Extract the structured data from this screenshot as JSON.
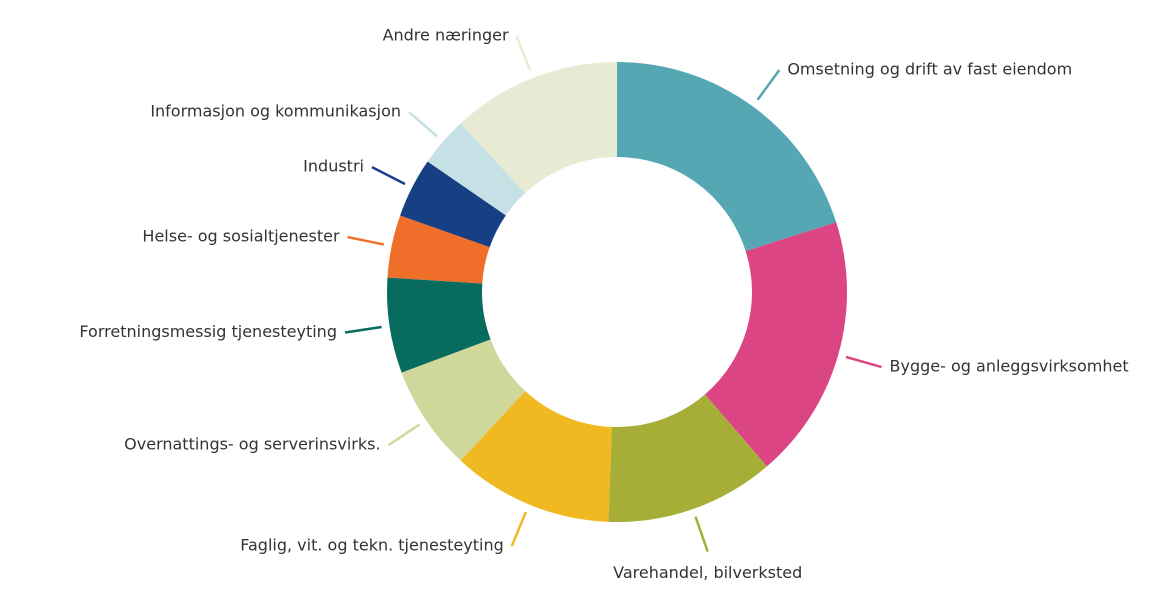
{
  "chart_data": {
    "type": "donut",
    "categories": [
      "Omsetning og drift av fast eiendom",
      "Bygge- og anleggsvirksomhet",
      "Varehandel, bilverksted",
      "Faglig, vit. og tekn. tjenesteyting",
      "Overnattings- og serverinsvirks.",
      "Forretningsmessig tjenesteyting",
      "Helse- og sosialtjenester",
      "Industri",
      "Informasjon og kommunikasjon",
      "Andre næringer"
    ],
    "values": [
      20.1,
      18.6,
      11.9,
      11.3,
      7.4,
      6.7,
      4.4,
      4.2,
      3.5,
      11.9
    ],
    "colors": [
      "#55a7b3",
      "#dc4583",
      "#a6ae37",
      "#f0b921",
      "#d0d79b",
      "#076b5e",
      "#ef6f2a",
      "#173f84",
      "#c6e1e5",
      "#e8ebd3"
    ]
  }
}
